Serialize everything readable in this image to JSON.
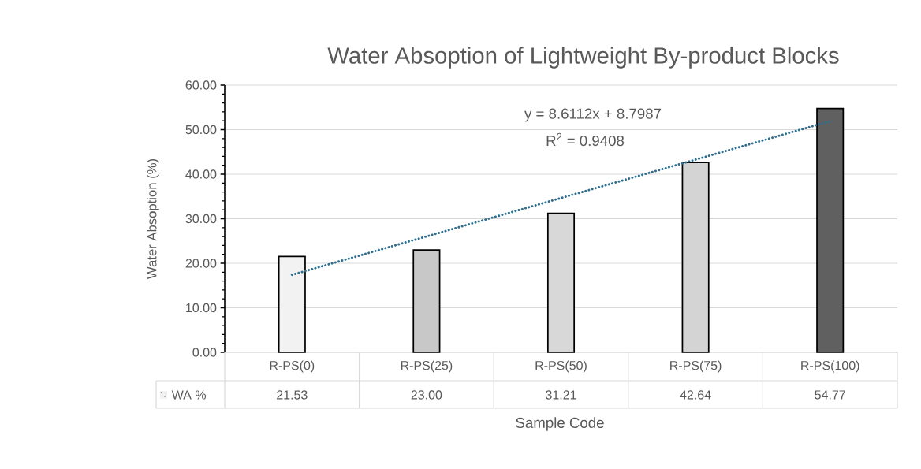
{
  "chart_data": {
    "type": "bar",
    "title": "Water Absoption of Lightweight By-product Blocks",
    "xlabel": "Sample Code",
    "ylabel": "Water Absoption (%)",
    "categories": [
      "R-PS(0)",
      "R-PS(25)",
      "R-PS(50)",
      "R-PS(75)",
      "R-PS(100)"
    ],
    "series": [
      {
        "name": "WA %",
        "colors": [
          "#f2f2f2",
          "#c8c8c8",
          "#d8d8d8",
          "#d4d4d4",
          "#606060"
        ],
        "values": [
          21.53,
          23.0,
          31.21,
          42.64,
          54.77
        ],
        "value_labels": [
          "21.53",
          "23.00",
          "31.21",
          "42.64",
          "54.77"
        ]
      },
      {
        "type": "line",
        "color": "#2e6e8e",
        "line_style": "dotted",
        "x": [
          "R-PS(0)",
          "R-PS(100)"
        ],
        "values": [
          17.4,
          51.9
        ]
      }
    ],
    "ylim": [
      0,
      60
    ],
    "yticks": [
      {
        "value": 0,
        "label": "0.00"
      },
      {
        "value": 10,
        "label": "10.00"
      },
      {
        "value": 20,
        "label": "20.00"
      },
      {
        "value": 30,
        "label": "30.00"
      },
      {
        "value": 40,
        "label": "40.00"
      },
      {
        "value": 50,
        "label": "50.00"
      },
      {
        "value": 60,
        "label": "60.00"
      }
    ],
    "grid": "y",
    "annotations": [
      "y = 8.6112x + 8.7987",
      "R$^{2}$ = 0.9408"
    ]
  }
}
